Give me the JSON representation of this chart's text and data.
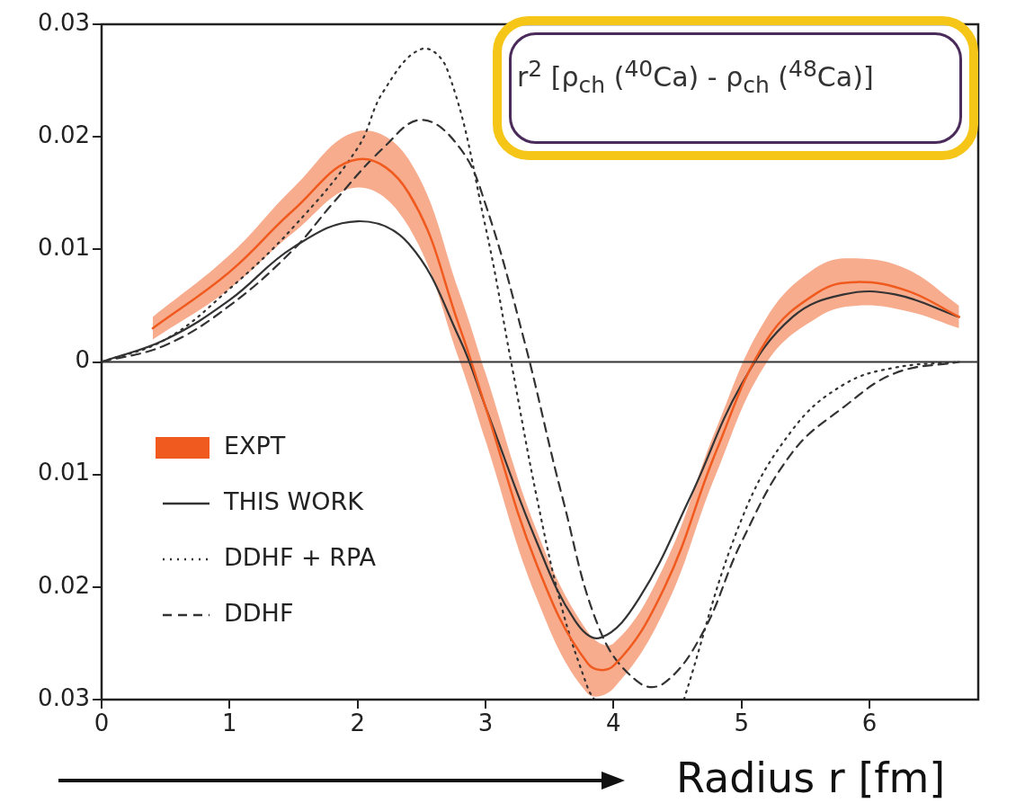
{
  "chart_data": {
    "type": "line",
    "xlabel": "Radius r [fm]",
    "annotations": [
      "r$^{2}$ [ρ$_{ch}$ ($^{40}$Ca) - ρ$_{ch}$ ($^{48}$Ca)]"
    ],
    "xlim": [
      0,
      6.85
    ],
    "xticks": [
      0,
      1,
      2,
      3,
      4,
      5,
      6
    ],
    "ylim": [
      -0.03,
      0.03
    ],
    "yticks": [
      {
        "value": -0.03,
        "label": "0.03"
      },
      {
        "value": -0.02,
        "label": "0.02"
      },
      {
        "value": -0.01,
        "label": "0.01"
      },
      0,
      0.01,
      0.02,
      0.03
    ],
    "grid": false,
    "legend": "bottom left",
    "marker": "none",
    "ref_lines": [
      {
        "axis": "y",
        "value": 0,
        "color": "#333333"
      }
    ],
    "series": [
      {
        "name": "EXPT",
        "type": "line",
        "color": "#f05a1e",
        "line_style": "solid",
        "x": [
          0.4,
          1.0,
          1.5,
          2.0,
          2.4,
          2.8,
          3.0,
          3.4,
          3.8,
          4.0,
          4.4,
          4.8,
          5.2,
          5.6,
          5.9,
          6.3,
          6.7
        ],
        "values": [
          0.003,
          0.008,
          0.0135,
          0.018,
          0.015,
          0.003,
          -0.004,
          -0.018,
          -0.0268,
          -0.027,
          -0.02,
          -0.008,
          0.002,
          0.0062,
          0.0071,
          0.0063,
          0.004
        ],
        "lower": [
          0.002,
          0.0065,
          0.0115,
          0.0155,
          0.012,
          0.0,
          -0.007,
          -0.021,
          -0.0295,
          -0.029,
          -0.022,
          -0.01,
          0.0,
          0.004,
          0.005,
          0.0045,
          0.003
        ],
        "upper": [
          0.004,
          0.0095,
          0.0155,
          0.0205,
          0.018,
          0.006,
          -0.001,
          -0.015,
          -0.024,
          -0.025,
          -0.018,
          -0.006,
          0.004,
          0.0085,
          0.0092,
          0.0082,
          0.005
        ]
      },
      {
        "name": "THIS WORK",
        "type": "line",
        "color": "#333333",
        "line_style": "solid",
        "x": [
          0,
          0.5,
          1.0,
          1.5,
          2.0,
          2.4,
          2.8,
          3.0,
          3.4,
          3.7,
          3.9,
          4.2,
          4.6,
          5.0,
          5.4,
          5.8,
          6.2,
          6.7
        ],
        "values": [
          0,
          0.002,
          0.0055,
          0.0102,
          0.0125,
          0.0105,
          0.002,
          -0.004,
          -0.016,
          -0.023,
          -0.0245,
          -0.021,
          -0.012,
          -0.002,
          0.004,
          0.006,
          0.006,
          0.004
        ]
      },
      {
        "name": "DDHF + RPA",
        "type": "line",
        "color": "#333333",
        "line_style": "dotted",
        "x": [
          0,
          0.5,
          1.0,
          1.5,
          2.0,
          2.2,
          2.5,
          2.7,
          3.0,
          3.2,
          3.4,
          3.6,
          3.8,
          3.85,
          4.2,
          4.55,
          5.0,
          5.4,
          5.8,
          6.2,
          6.7
        ],
        "values": [
          0,
          0.002,
          0.0065,
          0.012,
          0.019,
          0.024,
          0.0278,
          0.026,
          0.012,
          0.0,
          -0.012,
          -0.022,
          -0.029,
          -0.03,
          null,
          -0.03,
          -0.014,
          -0.006,
          -0.002,
          -0.0005,
          0
        ]
      },
      {
        "name": "DDHF",
        "type": "line",
        "color": "#333333",
        "line_style": "dashed",
        "x": [
          0,
          0.5,
          1.0,
          1.5,
          1.8,
          2.2,
          2.5,
          2.8,
          3.0,
          3.3,
          3.6,
          3.9,
          4.2,
          4.4,
          4.7,
          5.0,
          5.4,
          5.8,
          6.2,
          6.7
        ],
        "values": [
          0,
          0.0015,
          0.005,
          0.01,
          0.014,
          0.019,
          0.0215,
          0.019,
          0.014,
          0.002,
          -0.012,
          -0.024,
          -0.0285,
          -0.0285,
          -0.024,
          -0.016,
          -0.008,
          -0.004,
          -0.001,
          0
        ]
      }
    ]
  }
}
